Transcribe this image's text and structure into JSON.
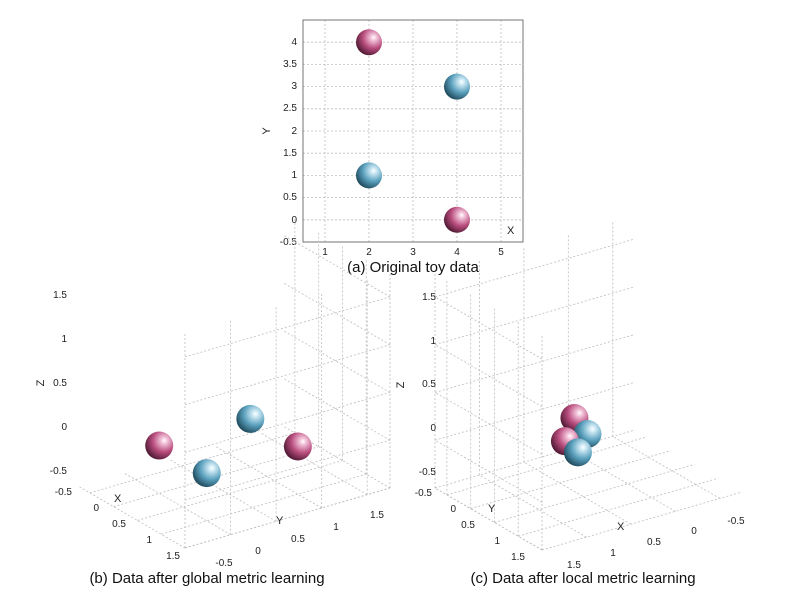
{
  "chart_data": [
    {
      "panel": "a",
      "type": "scatter",
      "caption": "(a) Original toy data",
      "xlabel": "X",
      "ylabel": "Y",
      "xlim": [
        0.5,
        5.5
      ],
      "ylim": [
        -0.5,
        4.5
      ],
      "x_ticks": [
        "1",
        "2",
        "3",
        "4",
        "5"
      ],
      "y_ticks": [
        "-0.5",
        "0",
        "0.5",
        "1",
        "1.5",
        "2",
        "2.5",
        "3",
        "3.5",
        "4"
      ],
      "grid": true,
      "points": [
        {
          "x": 2,
          "y": 4,
          "color": "magenta"
        },
        {
          "x": 4,
          "y": 3,
          "color": "cyan"
        },
        {
          "x": 2,
          "y": 1,
          "color": "cyan"
        },
        {
          "x": 4,
          "y": 0,
          "color": "magenta"
        }
      ]
    },
    {
      "panel": "b",
      "type": "scatter",
      "caption": "(b) Data after global metric learning",
      "xlabel": "X",
      "ylabel": "Y",
      "zlabel": "Z",
      "x_ticks": [
        "-0.5",
        "0",
        "0.5",
        "1",
        "1.5"
      ],
      "y_ticks": [
        "-0.5",
        "0",
        "0.5",
        "1",
        "1.5"
      ],
      "z_ticks": [
        "-0.5",
        "0",
        "0.5",
        "1",
        "1.5"
      ],
      "grid": true,
      "points": [
        {
          "x": 0,
          "y": 0,
          "z": 0,
          "color": "cyan"
        },
        {
          "x": 1,
          "y": 0,
          "z": 0,
          "color": "magenta"
        },
        {
          "x": 0,
          "y": 1,
          "z": 0,
          "color": "magenta"
        },
        {
          "x": 1,
          "y": 1,
          "z": 0,
          "color": "cyan"
        }
      ]
    },
    {
      "panel": "c",
      "type": "scatter",
      "caption": "(c) Data after local metric learning",
      "xlabel": "X",
      "ylabel": "Y",
      "zlabel": "Z",
      "x_ticks": [
        "-0.5",
        "0",
        "0.5",
        "1",
        "1.5"
      ],
      "y_ticks": [
        "-0.5",
        "0",
        "0.5",
        "1",
        "1.5"
      ],
      "z_ticks": [
        "-0.5",
        "0",
        "0.5",
        "1",
        "1.5"
      ],
      "grid": true,
      "points": [
        {
          "x": 0.4,
          "y": 0.5,
          "z": 0.35,
          "color": "magenta"
        },
        {
          "x": 0.6,
          "y": 0.6,
          "z": 0.1,
          "color": "cyan"
        },
        {
          "x": 0.4,
          "y": 0.7,
          "z": 0.05,
          "color": "magenta"
        },
        {
          "x": 0.6,
          "y": 0.8,
          "z": -0.15,
          "color": "cyan"
        }
      ]
    }
  ],
  "colors": {
    "magenta": "#c0507f",
    "cyan": "#5a9db8"
  }
}
